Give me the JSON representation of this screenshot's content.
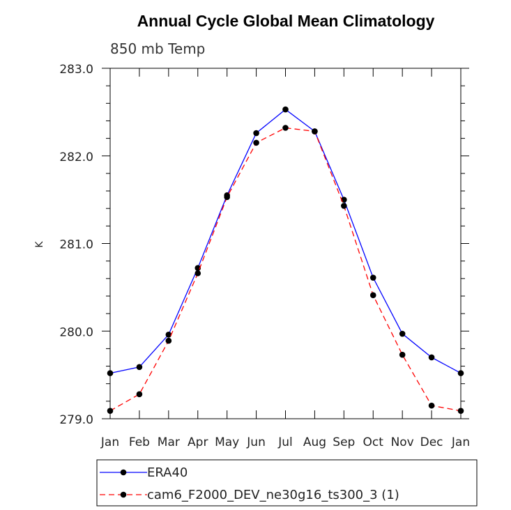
{
  "chart_data": {
    "type": "line",
    "title": "Annual Cycle Global Mean Climatology",
    "subtitle": "850 mb Temp",
    "xlabel": "",
    "ylabel": "K",
    "categories": [
      "Jan",
      "Feb",
      "Mar",
      "Apr",
      "May",
      "Jun",
      "Jul",
      "Aug",
      "Sep",
      "Oct",
      "Nov",
      "Dec",
      "Jan"
    ],
    "ylim": [
      279.0,
      283.0
    ],
    "yticks": [
      "279.0",
      "280.0",
      "281.0",
      "282.0",
      "283.0"
    ],
    "series": [
      {
        "name": "ERA40",
        "color": "#0000ff",
        "dash": "solid",
        "values": [
          279.52,
          279.59,
          279.96,
          280.72,
          281.55,
          282.26,
          282.53,
          282.28,
          281.5,
          280.61,
          279.97,
          279.7,
          279.52
        ]
      },
      {
        "name": "cam6_F2000_DEV_ne30g16_ts300_3 (1)",
        "color": "#ff0000",
        "dash": "dashed",
        "values": [
          279.09,
          279.28,
          279.89,
          280.66,
          281.53,
          282.15,
          282.32,
          282.28,
          281.43,
          280.41,
          279.73,
          279.15,
          279.09
        ]
      }
    ],
    "grid": false,
    "legend": "bottom"
  }
}
